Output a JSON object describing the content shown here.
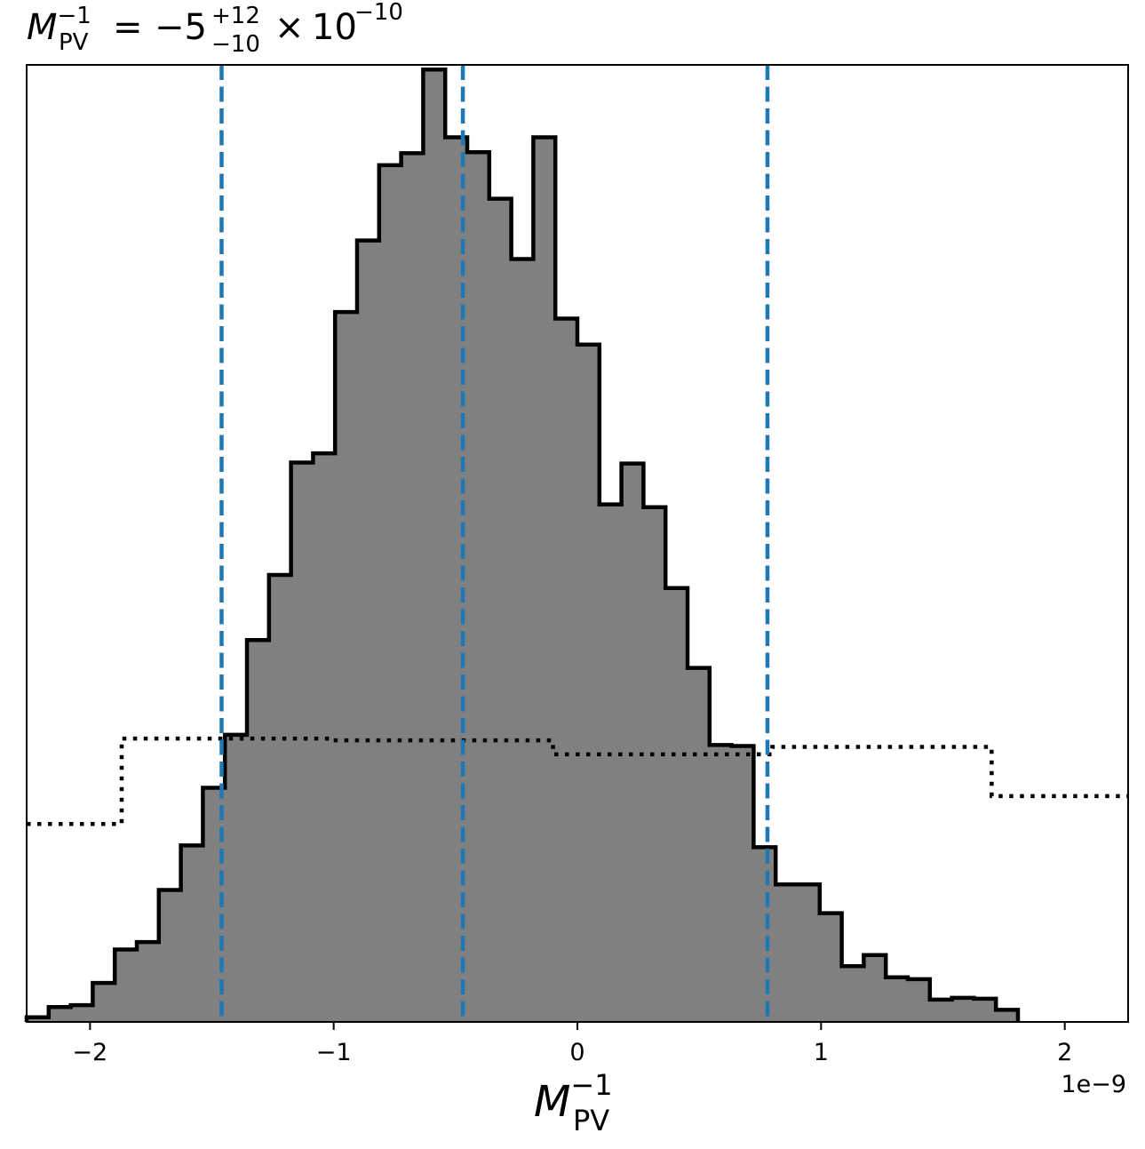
{
  "chart_data": {
    "type": "histogram",
    "title": {
      "lhs_symbol": "M",
      "lhs_sup": "−1",
      "lhs_sub": "PV",
      "equals": "=",
      "median": "−5",
      "err_plus": "+12",
      "err_minus": "−10",
      "times": "×",
      "base": "10",
      "exponent": "−10"
    },
    "xlabel": {
      "symbol": "M",
      "sup": "−1",
      "sub": "PV"
    },
    "x_offset_label": "1e−9",
    "xlim": [
      -2.26,
      2.26
    ],
    "ylim": [
      0,
      1030
    ],
    "x_unit_scale": 1e-09,
    "x_ticks": [
      -2,
      -1,
      0,
      1,
      2
    ],
    "x_tick_labels": [
      "−2",
      "−1",
      "0",
      "1",
      "2"
    ],
    "posterior": {
      "bin_start": -2.26,
      "bin_width": 0.0904,
      "counts": [
        5,
        16,
        18,
        42,
        78,
        86,
        142,
        190,
        252,
        309,
        411,
        481,
        602,
        612,
        764,
        841,
        922,
        935,
        1025,
        952,
        936,
        886,
        821,
        952,
        757,
        729,
        557,
        601,
        554,
        467,
        381,
        298,
        297,
        188,
        148,
        148,
        117,
        60,
        72,
        48,
        46,
        24,
        26,
        25,
        13
      ]
    },
    "prior": {
      "edges": [
        -2.26,
        -1.87,
        -1.0,
        -0.1,
        0.8,
        1.7,
        2.26
      ],
      "heights": [
        213,
        305,
        303,
        288,
        296,
        243
      ]
    },
    "quantiles": [
      -1.46,
      -0.47,
      0.78
    ],
    "colors": {
      "posterior_fill": "#808080",
      "posterior_edge": "#000000",
      "prior_line": "#000000",
      "quantile_line": "#1f77b4"
    }
  }
}
